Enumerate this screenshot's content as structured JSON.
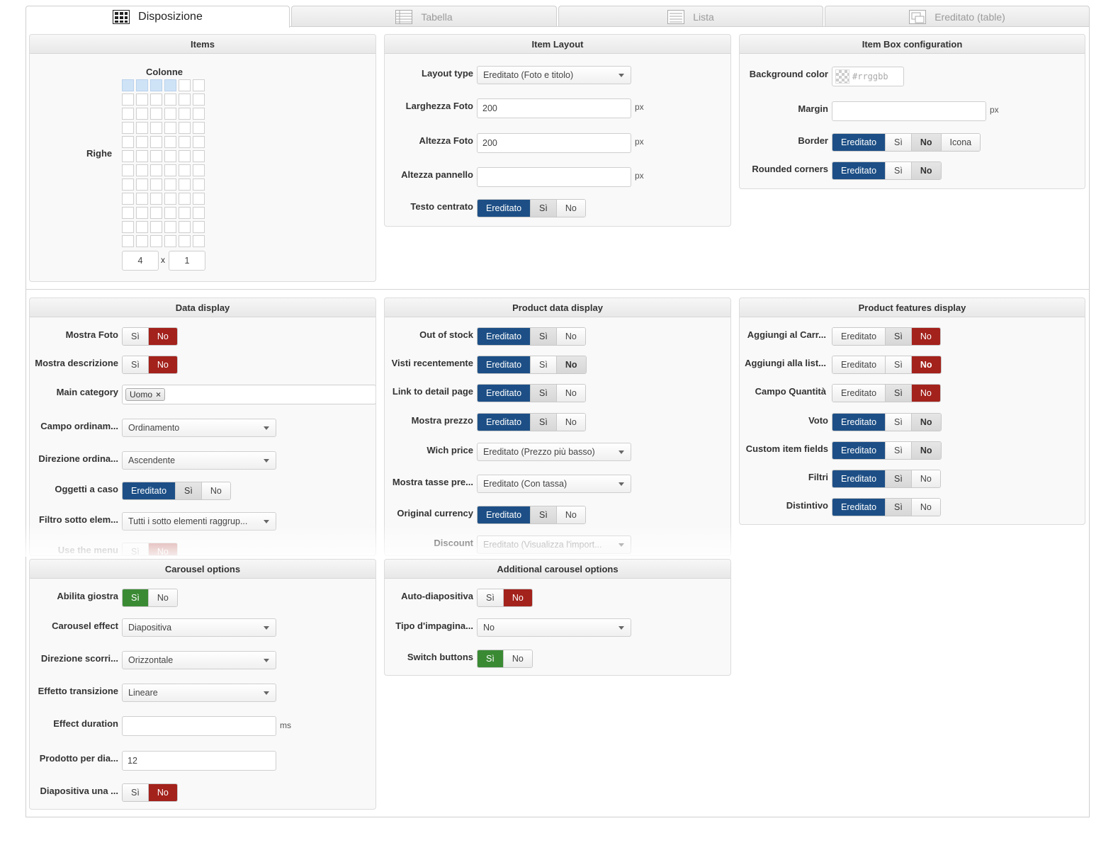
{
  "tabs": [
    {
      "label": "Disposizione",
      "icon": "grid-layout-icon",
      "active": true
    },
    {
      "label": "Tabella",
      "icon": "table-icon",
      "active": false
    },
    {
      "label": "Lista",
      "icon": "list-icon",
      "active": false
    },
    {
      "label": "Ereditato (table)",
      "icon": "inherited-table-icon",
      "active": false
    }
  ],
  "items_panel": {
    "title": "Items",
    "columns_label": "Colonne",
    "rows_label": "Righe",
    "columns_value": "4",
    "times": "x",
    "rows_value": "1",
    "grid_cols": 6,
    "grid_rows": 12,
    "selected_cols": 4,
    "selected_rows": 1
  },
  "item_layout": {
    "title": "Item Layout",
    "layout_type": {
      "label": "Layout type",
      "value": "Ereditato (Foto e titolo)"
    },
    "larghezza_foto": {
      "label": "Larghezza Foto",
      "value": "200",
      "unit": "px"
    },
    "altezza_foto": {
      "label": "Altezza Foto",
      "value": "200",
      "unit": "px"
    },
    "altezza_pannello": {
      "label": "Altezza pannello",
      "value": "",
      "unit": "px"
    },
    "testo_centrato": {
      "label": "Testo centrato",
      "options": [
        "Ereditato",
        "Sì",
        "No"
      ]
    }
  },
  "item_box": {
    "title": "Item Box configuration",
    "background_color": {
      "label": "Background color",
      "placeholder": "#rrggbb"
    },
    "margin": {
      "label": "Margin",
      "value": "",
      "unit": "px"
    },
    "border": {
      "label": "Border",
      "options": [
        "Ereditato",
        "Sì",
        "No",
        "Icona"
      ]
    },
    "rounded_corners": {
      "label": "Rounded corners",
      "options": [
        "Ereditato",
        "Sì",
        "No"
      ]
    }
  },
  "data_display": {
    "title": "Data display",
    "mostra_foto": {
      "label": "Mostra Foto",
      "options": [
        "Sì",
        "No"
      ]
    },
    "mostra_descrizione": {
      "label": "Mostra descrizione",
      "options": [
        "Sì",
        "No"
      ]
    },
    "main_category": {
      "label": "Main category",
      "tag": "Uomo"
    },
    "campo_ordinamento": {
      "label": "Campo ordinam...",
      "value": "Ordinamento"
    },
    "direzione_ordinamento": {
      "label": "Direzione ordina...",
      "value": "Ascendente"
    },
    "oggetti_a_caso": {
      "label": "Oggetti a caso",
      "options": [
        "Ereditato",
        "Sì",
        "No"
      ]
    },
    "filtro_sotto": {
      "label": "Filtro sotto elem...",
      "value": "Tutti i sotto elementi raggrup..."
    },
    "use_the_menu": {
      "label": "Use the menu",
      "options": [
        "Sì",
        "No"
      ]
    }
  },
  "product_data": {
    "title": "Product data display",
    "out_of_stock": {
      "label": "Out of stock",
      "options": [
        "Ereditato",
        "Sì",
        "No"
      ]
    },
    "visti_recentemente": {
      "label": "Visti recentemente",
      "options": [
        "Ereditato",
        "Sì",
        "No"
      ]
    },
    "link_detail": {
      "label": "Link to detail page",
      "options": [
        "Ereditato",
        "Sì",
        "No"
      ]
    },
    "mostra_prezzo": {
      "label": "Mostra prezzo",
      "options": [
        "Ereditato",
        "Sì",
        "No"
      ]
    },
    "wich_price": {
      "label": "Wich price",
      "value": "Ereditato (Prezzo più basso)"
    },
    "mostra_tasse": {
      "label": "Mostra tasse pre...",
      "value": "Ereditato (Con tassa)"
    },
    "original_currency": {
      "label": "Original currency",
      "options": [
        "Ereditato",
        "Sì",
        "No"
      ]
    },
    "discount": {
      "label": "Discount",
      "value": "Ereditato (Visualizza l'import..."
    }
  },
  "product_features": {
    "title": "Product features display",
    "aggiungi_carrello": {
      "label": "Aggiungi al Carr...",
      "options": [
        "Ereditato",
        "Sì",
        "No"
      ]
    },
    "aggiungi_lista": {
      "label": "Aggiungi alla list...",
      "options": [
        "Ereditato",
        "Sì",
        "No"
      ]
    },
    "campo_quantita": {
      "label": "Campo Quantità",
      "options": [
        "Ereditato",
        "Sì",
        "No"
      ]
    },
    "voto": {
      "label": "Voto",
      "options": [
        "Ereditato",
        "Sì",
        "No"
      ]
    },
    "custom_fields": {
      "label": "Custom item fields",
      "options": [
        "Ereditato",
        "Sì",
        "No"
      ]
    },
    "filtri": {
      "label": "Filtri",
      "options": [
        "Ereditato",
        "Sì",
        "No"
      ]
    },
    "distintivo": {
      "label": "Distintivo",
      "options": [
        "Ereditato",
        "Sì",
        "No"
      ]
    }
  },
  "carousel": {
    "title": "Carousel options",
    "abilita_giostra": {
      "label": "Abilita giostra",
      "options": [
        "Sì",
        "No"
      ]
    },
    "carousel_effect": {
      "label": "Carousel effect",
      "value": "Diapositiva"
    },
    "direzione_scorrimento": {
      "label": "Direzione scorri...",
      "value": "Orizzontale"
    },
    "effetto_transizione": {
      "label": "Effetto transizione",
      "value": "Lineare"
    },
    "effect_duration": {
      "label": "Effect duration",
      "value": "",
      "unit": "ms"
    },
    "prodotto_per_diapositiva": {
      "label": "Prodotto per dia...",
      "value": "12"
    },
    "diapositiva_una": {
      "label": "Diapositiva una ...",
      "options": [
        "Sì",
        "No"
      ]
    }
  },
  "additional_carousel": {
    "title": "Additional carousel options",
    "auto_diapositiva": {
      "label": "Auto-diapositiva",
      "options": [
        "Sì",
        "No"
      ]
    },
    "tipo_impaginazione": {
      "label": "Tipo d'impagina...",
      "value": "No"
    },
    "switch_buttons": {
      "label": "Switch buttons",
      "options": [
        "Sì",
        "No"
      ]
    }
  },
  "colors": {
    "blue": "#1d4f86",
    "red": "#a3221c",
    "green": "#3a8a34"
  }
}
